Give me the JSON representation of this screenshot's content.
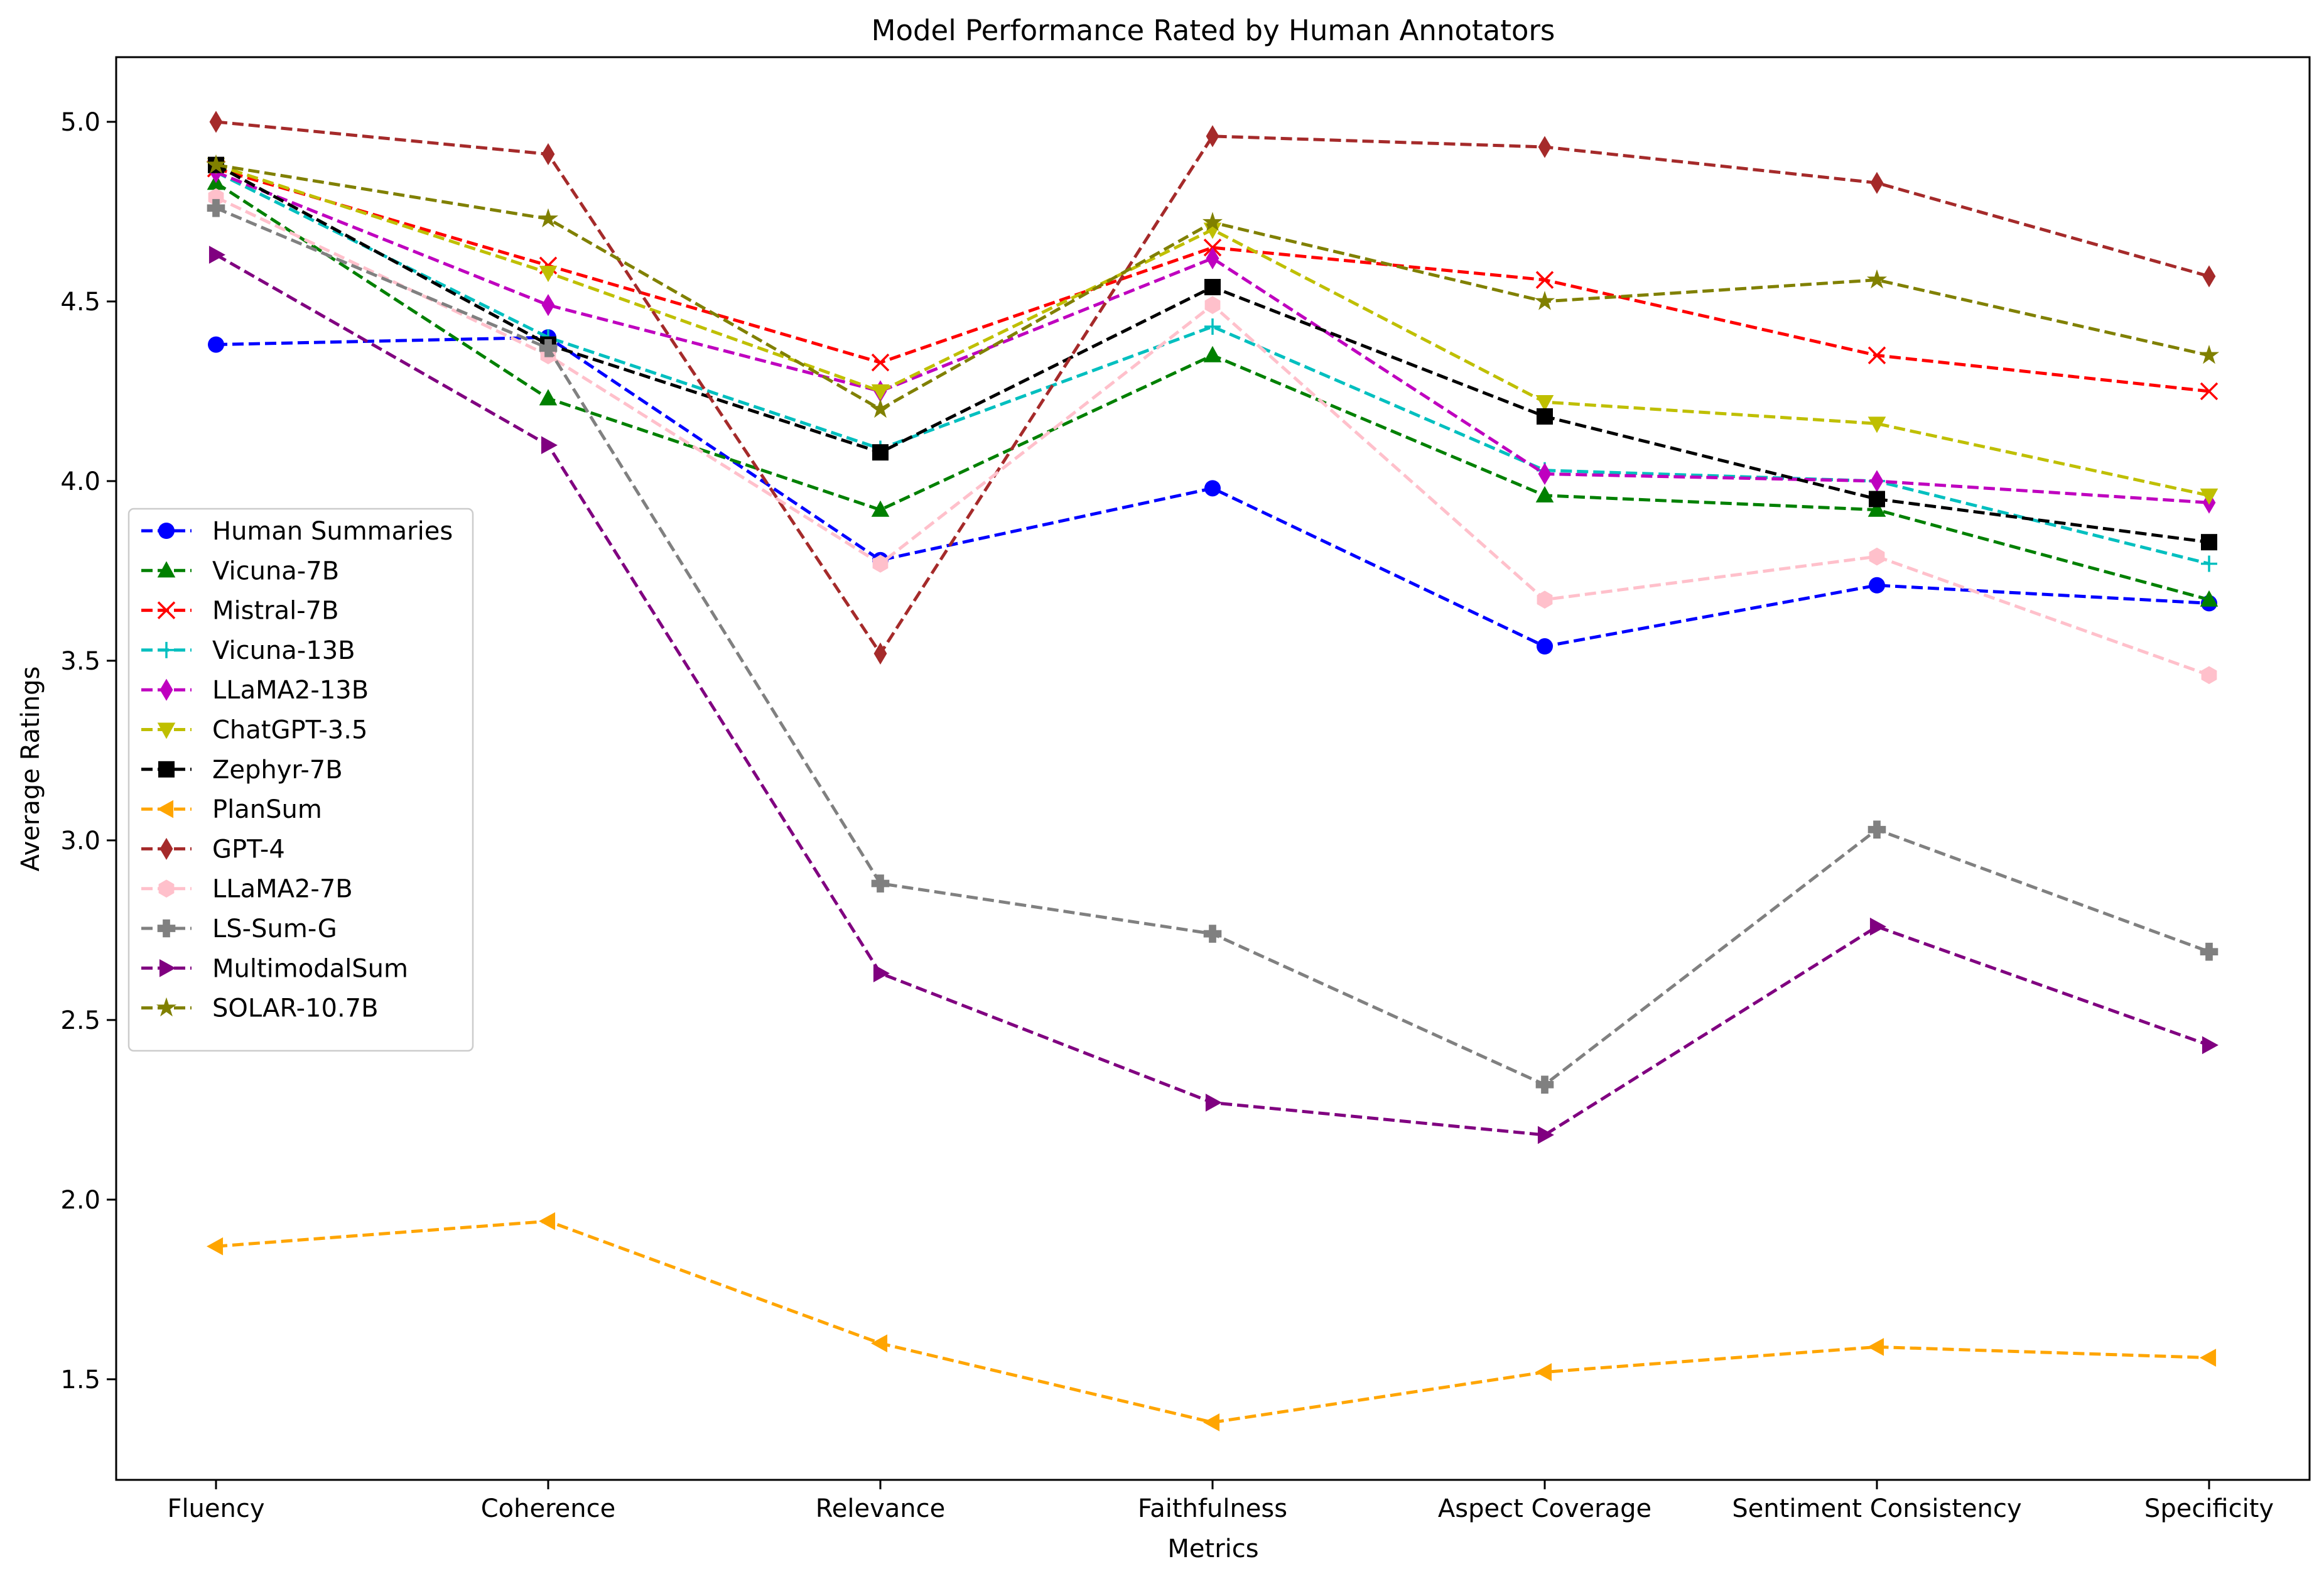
{
  "chart_data": {
    "type": "line",
    "title": "Model Performance Rated by Human Annotators",
    "xlabel": "Metrics",
    "ylabel": "Average Ratings",
    "categories": [
      "Fluency",
      "Coherence",
      "Relevance",
      "Faithfulness",
      "Aspect Coverage",
      "Sentiment Consistency",
      "Specificity"
    ],
    "ylim": [
      1.22,
      5.18
    ],
    "yticks": [
      "1.5",
      "2.0",
      "2.5",
      "3.0",
      "3.5",
      "4.0",
      "4.5",
      "5.0"
    ],
    "legend_position": "center-left",
    "grid": false,
    "series": [
      {
        "name": "Human Summaries",
        "color": "#0000ff",
        "marker": "circle",
        "values": [
          4.38,
          4.4,
          3.78,
          3.98,
          3.54,
          3.71,
          3.66
        ]
      },
      {
        "name": "Vicuna-7B",
        "color": "#008000",
        "marker": "triangle-up",
        "values": [
          4.83,
          4.23,
          3.92,
          4.35,
          3.96,
          3.92,
          3.67
        ]
      },
      {
        "name": "Mistral-7B",
        "color": "#ff0000",
        "marker": "x",
        "values": [
          4.87,
          4.6,
          4.33,
          4.65,
          4.56,
          4.35,
          4.25
        ]
      },
      {
        "name": "Vicuna-13B",
        "color": "#00bfbf",
        "marker": "plus",
        "values": [
          4.86,
          4.4,
          4.09,
          4.43,
          4.03,
          4.0,
          3.77
        ]
      },
      {
        "name": "LLaMA2-13B",
        "color": "#bf00bf",
        "marker": "thin-diamond",
        "values": [
          4.86,
          4.49,
          4.25,
          4.62,
          4.02,
          4.0,
          3.94
        ]
      },
      {
        "name": "ChatGPT-3.5",
        "color": "#bfbf00",
        "marker": "triangle-down",
        "values": [
          4.88,
          4.58,
          4.25,
          4.7,
          4.22,
          4.16,
          3.96
        ]
      },
      {
        "name": "Zephyr-7B",
        "color": "#000000",
        "marker": "square",
        "values": [
          4.88,
          4.38,
          4.08,
          4.54,
          4.18,
          3.95,
          3.83
        ]
      },
      {
        "name": "PlanSum",
        "color": "#ffa500",
        "marker": "triangle-left",
        "values": [
          1.87,
          1.94,
          1.6,
          1.38,
          1.52,
          1.59,
          1.56
        ]
      },
      {
        "name": "GPT-4",
        "color": "#a52a2a",
        "marker": "thin-diamond",
        "values": [
          5.0,
          4.91,
          3.52,
          4.96,
          4.93,
          4.83,
          4.57
        ]
      },
      {
        "name": "LLaMA2-7B",
        "color": "#ffc0cb",
        "marker": "hexagon",
        "values": [
          4.79,
          4.35,
          3.77,
          4.49,
          3.67,
          3.79,
          3.46
        ]
      },
      {
        "name": "LS-Sum-G",
        "color": "#808080",
        "marker": "plus-filled",
        "values": [
          4.76,
          4.37,
          2.88,
          2.74,
          2.32,
          3.03,
          2.69
        ]
      },
      {
        "name": "MultimodalSum",
        "color": "#800080",
        "marker": "triangle-right",
        "values": [
          4.63,
          4.1,
          2.63,
          2.27,
          2.18,
          2.76,
          2.43
        ]
      },
      {
        "name": "SOLAR-10.7B",
        "color": "#808000",
        "marker": "star",
        "values": [
          4.88,
          4.73,
          4.2,
          4.72,
          4.5,
          4.56,
          4.35
        ]
      }
    ]
  }
}
